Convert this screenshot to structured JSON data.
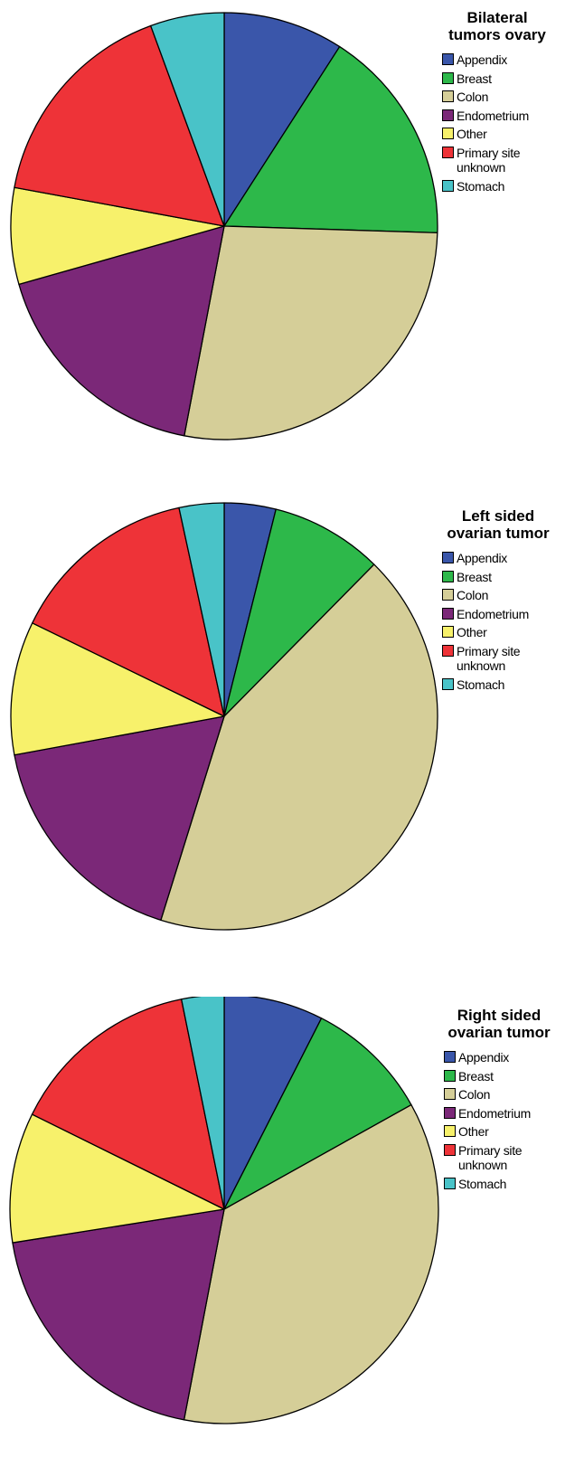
{
  "chart_data": [
    {
      "type": "pie",
      "title": "Bilateral\ntumors ovary",
      "legend_placement": "top-right",
      "slices": [
        {
          "label": "Appendix",
          "value": 9.1,
          "color": "#3A56AA"
        },
        {
          "label": "Breast",
          "value": 16.4,
          "color": "#2DB84A"
        },
        {
          "label": "Colon",
          "value": 27.5,
          "color": "#D5CE98"
        },
        {
          "label": "Endometrium",
          "value": 17.6,
          "color": "#7B2878"
        },
        {
          "label": "Other",
          "value": 7.3,
          "color": "#F7F16B"
        },
        {
          "label": "Primary site\nunknown",
          "value": 16.5,
          "color": "#EE3338"
        },
        {
          "label": "Stomach",
          "value": 5.6,
          "color": "#49C3C8"
        }
      ]
    },
    {
      "type": "pie",
      "title": "Left sided\novarian tumor",
      "legend_placement": "top-right",
      "slices": [
        {
          "label": "Appendix",
          "value": 3.9,
          "color": "#3A56AA"
        },
        {
          "label": "Breast",
          "value": 8.5,
          "color": "#2DB84A"
        },
        {
          "label": "Colon",
          "value": 42.4,
          "color": "#D5CE98"
        },
        {
          "label": "Endometrium",
          "value": 17.3,
          "color": "#7B2878"
        },
        {
          "label": "Other",
          "value": 10.1,
          "color": "#F7F16B"
        },
        {
          "label": "Primary site\nunknown",
          "value": 14.4,
          "color": "#EE3338"
        },
        {
          "label": "Stomach",
          "value": 3.4,
          "color": "#49C3C8"
        }
      ]
    },
    {
      "type": "pie",
      "title": "Right sided\novarian tumor",
      "legend_placement": "top-right",
      "slices": [
        {
          "label": "Appendix",
          "value": 7.5,
          "color": "#3A56AA"
        },
        {
          "label": "Breast",
          "value": 9.4,
          "color": "#2DB84A"
        },
        {
          "label": "Colon",
          "value": 36.1,
          "color": "#D5CE98"
        },
        {
          "label": "Endometrium",
          "value": 19.5,
          "color": "#7B2878"
        },
        {
          "label": "Other",
          "value": 9.8,
          "color": "#F7F16B"
        },
        {
          "label": "Primary site\nunknown",
          "value": 14.5,
          "color": "#EE3338"
        },
        {
          "label": "Stomach",
          "value": 3.2,
          "color": "#49C3C8"
        }
      ]
    }
  ]
}
